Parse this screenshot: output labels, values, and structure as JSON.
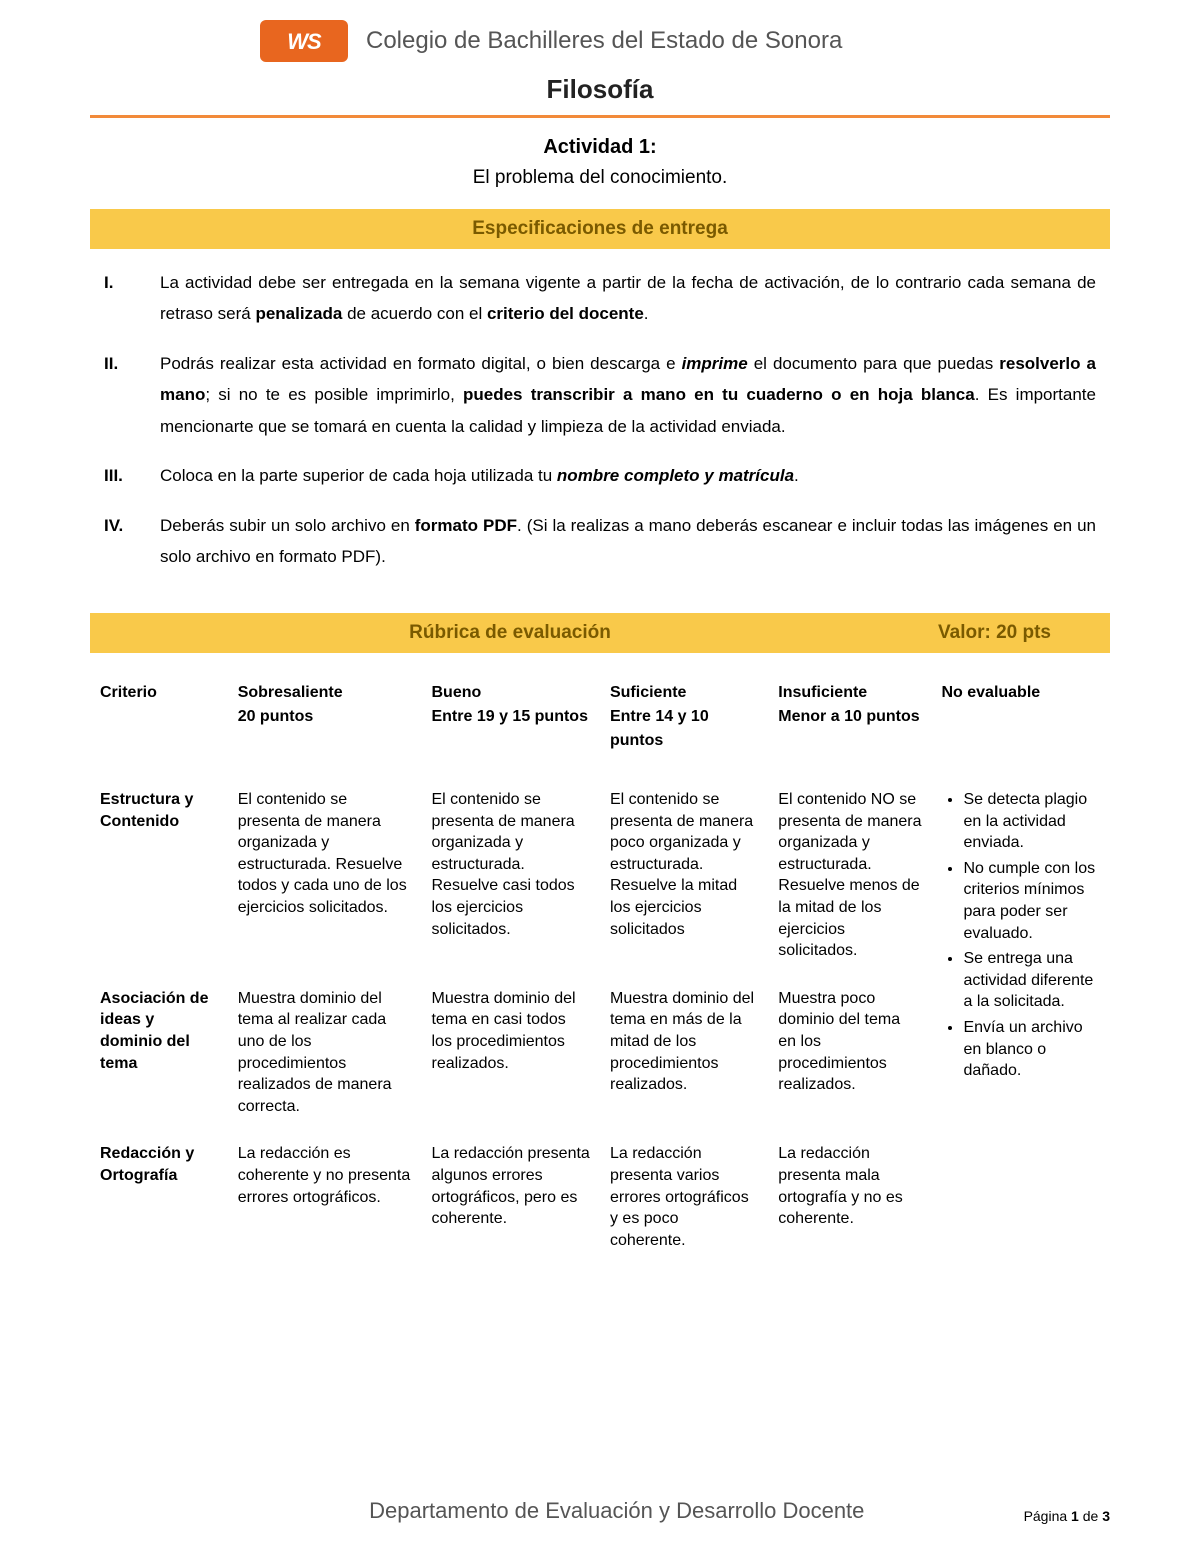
{
  "colors": {
    "brand_orange": "#e8661f",
    "rule_orange": "#f28a3a",
    "band_yellow": "#f9c94a",
    "band_text": "#7a5a00",
    "grey_text": "#555555",
    "body_text": "#000000",
    "background": "#ffffff"
  },
  "header": {
    "logo_text": "WS",
    "school": "Colegio de Bachilleres del Estado de Sonora",
    "subject": "Filosofía"
  },
  "activity": {
    "title": "Actividad 1:",
    "subtitle": "El problema del conocimiento."
  },
  "spec_band": "Especificaciones de entrega",
  "specs": [
    {
      "roman": "I.",
      "html": "La actividad debe ser entregada en la semana vigente a partir de la fecha de activación, de lo contrario cada semana de retraso será <span class='b'>penalizada</span> de acuerdo con el <span class='b'>criterio del docente</span>."
    },
    {
      "roman": "II.",
      "html": "Podrás realizar esta actividad en formato digital, o bien descarga e <span class='bi'>imprime</span> el documento para que puedas <span class='b'>resolverlo a mano</span>; si no te es posible imprimirlo, <span class='b'>puedes transcribir a mano en tu cuaderno o en hoja blanca</span>. Es importante mencionarte que se tomará en cuenta la calidad y limpieza de la actividad enviada."
    },
    {
      "roman": "III.",
      "html": "Coloca en la parte superior de cada hoja utilizada tu <span class='bi'>nombre completo y matrícula</span>."
    },
    {
      "roman": "IV.",
      "html": "Deberás subir un solo archivo en <span class='b'>formato PDF</span>. (Si la realizas a mano deberás escanear e incluir todas las imágenes en un solo archivo en formato PDF)."
    }
  ],
  "rubric_band": {
    "title": "Rúbrica de evaluación",
    "value": "Valor: 20 pts"
  },
  "rubric": {
    "columns": [
      "Criterio",
      "Sobresaliente\n20 puntos",
      "Bueno\nEntre 19 y 15 puntos",
      "Suficiente\nEntre 14 y 10 puntos",
      "Insuficiente\nMenor a 10 puntos",
      "No evaluable"
    ],
    "rows": [
      {
        "criterio": "Estructura y Contenido",
        "sobresaliente": "El contenido se presenta de manera organizada y estructurada. Resuelve todos y cada uno de los ejercicios solicitados.",
        "bueno": "El contenido se presenta de manera organizada y estructurada. Resuelve casi todos los ejercicios solicitados.",
        "suficiente": "El contenido se presenta de manera poco organizada y estructurada. Resuelve la mitad los ejercicios solicitados",
        "insuficiente": "El contenido NO se presenta de manera organizada y estructurada. Resuelve menos de la mitad de los ejercicios solicitados."
      },
      {
        "criterio": "Asociación de ideas y dominio del tema",
        "sobresaliente": "Muestra dominio del tema al realizar cada uno de los procedimientos realizados de manera correcta.",
        "bueno": "Muestra dominio del tema en casi todos los procedimientos realizados.",
        "suficiente": "Muestra dominio del tema en más de la mitad de los procedimientos realizados.",
        "insuficiente": "Muestra poco dominio del tema en los procedimientos realizados."
      },
      {
        "criterio": "Redacción y Ortografía",
        "sobresaliente": "La redacción es coherente y no presenta errores ortográficos.",
        "bueno": "La redacción presenta algunos errores ortográficos, pero es coherente.",
        "suficiente": "La redacción presenta varios errores ortográficos y es poco coherente.",
        "insuficiente": "La redacción presenta mala ortografía y no es coherente."
      }
    ],
    "no_evaluable": [
      "Se detecta plagio en la actividad enviada.",
      "No cumple con los criterios mínimos para poder ser evaluado.",
      "Se entrega una actividad diferente a la solicitada.",
      "Envía un archivo en blanco o dañado."
    ]
  },
  "footer": {
    "dept": "Departamento de Evaluación y Desarrollo Docente",
    "page_prefix": "Página ",
    "page_current": "1",
    "page_mid": " de ",
    "page_total": "3"
  }
}
